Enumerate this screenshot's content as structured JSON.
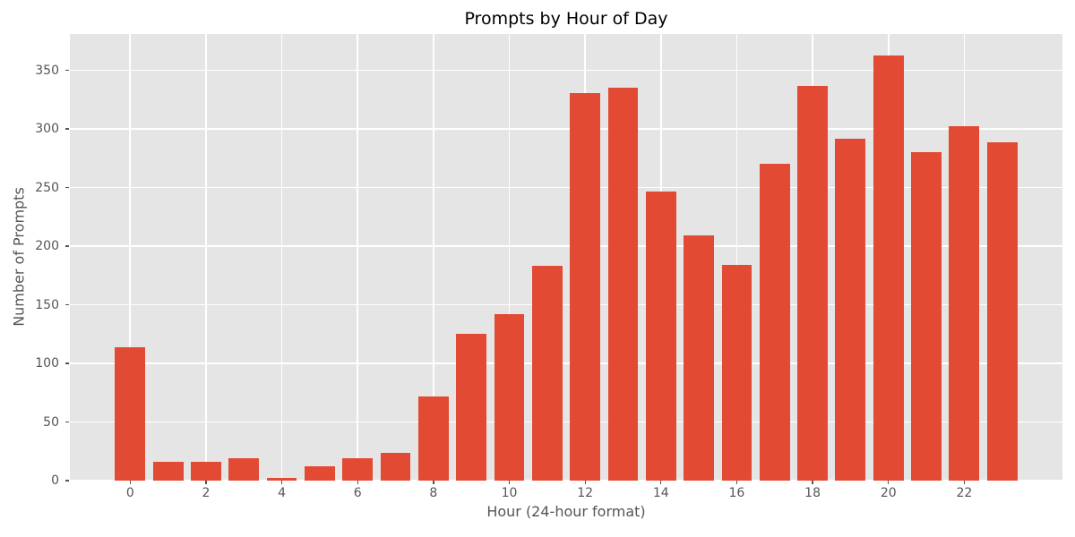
{
  "figure": {
    "background": "#ffffff"
  },
  "chart_data": {
    "type": "bar",
    "title": "Prompts by Hour of Day",
    "xlabel": "Hour (24-hour format)",
    "ylabel": "Number of Prompts",
    "categories": [
      0,
      1,
      2,
      3,
      4,
      5,
      6,
      7,
      8,
      9,
      10,
      11,
      12,
      13,
      14,
      15,
      16,
      17,
      18,
      19,
      20,
      21,
      22,
      23
    ],
    "values": [
      114,
      16,
      16,
      19,
      2,
      12,
      19,
      24,
      72,
      125,
      142,
      183,
      331,
      335,
      247,
      209,
      184,
      270,
      337,
      292,
      363,
      280,
      302,
      289
    ],
    "xticks": [
      0,
      2,
      4,
      6,
      8,
      10,
      12,
      14,
      16,
      18,
      20,
      22
    ],
    "yticks": [
      0,
      50,
      100,
      150,
      200,
      250,
      300,
      350
    ],
    "xlim": [
      -1.59,
      24.59
    ],
    "ylim": [
      0,
      381
    ],
    "bar_width": 0.8,
    "grid": true,
    "legend_position": "none",
    "colors": {
      "bar": "#e24a33",
      "plot_background": "#e5e5e5",
      "gridline": "#ffffff",
      "tick_text": "#555555",
      "axis_label_text": "#555555",
      "title_text": "#000000"
    }
  }
}
